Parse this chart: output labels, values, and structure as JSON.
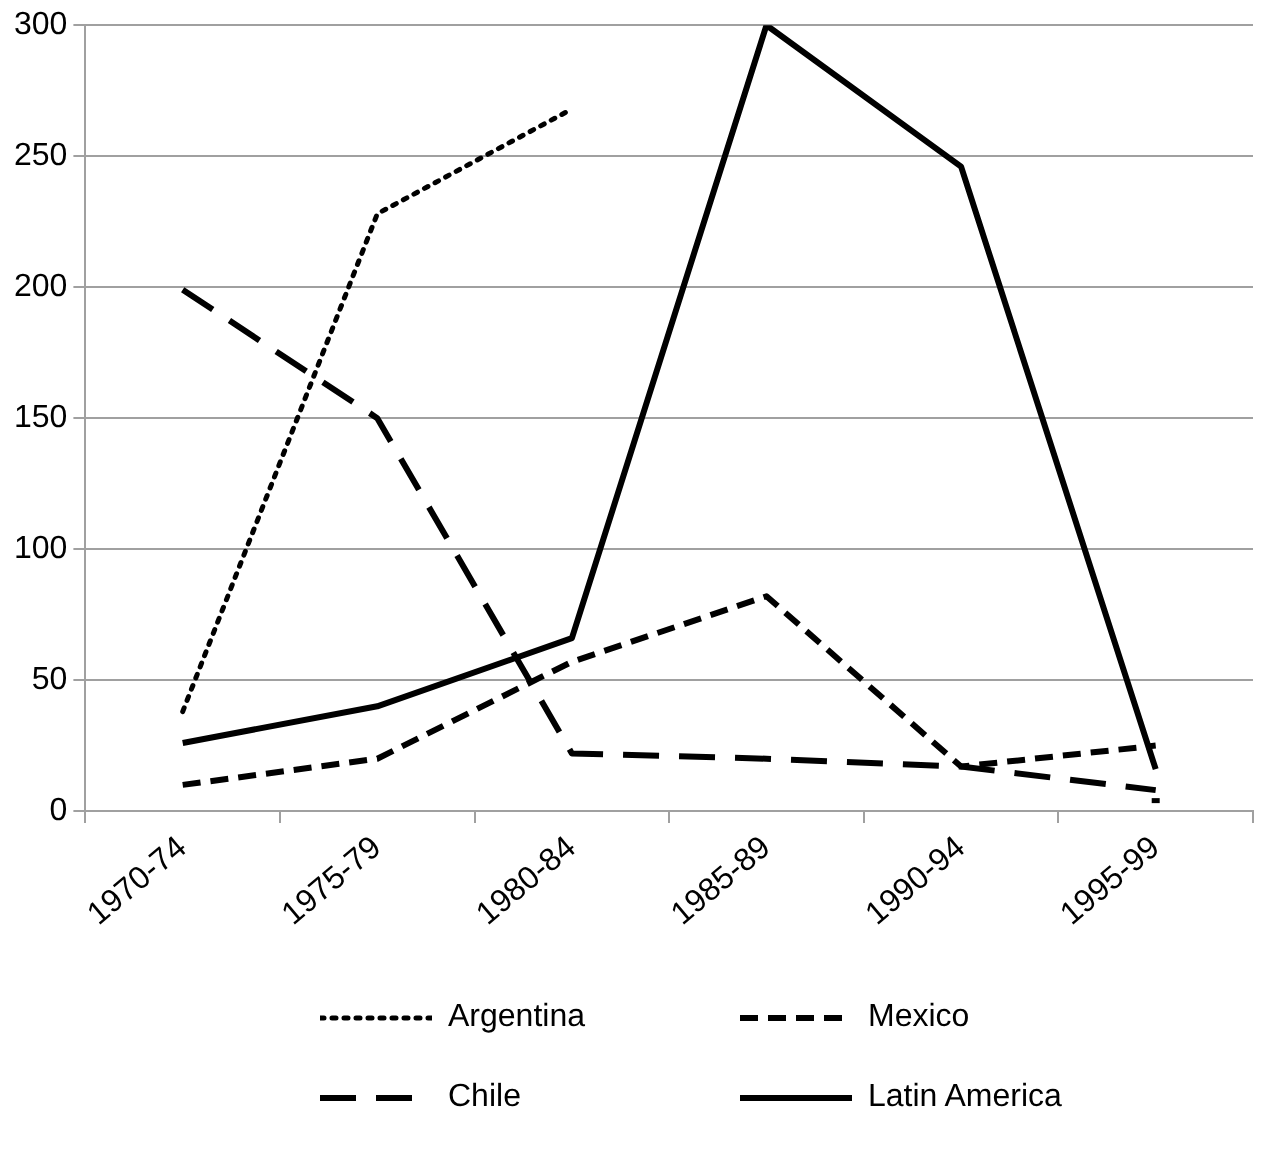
{
  "chart_data": {
    "type": "line",
    "categories": [
      "1970-74",
      "1975-79",
      "1980-84",
      "1985-89",
      "1990-94",
      "1995-99"
    ],
    "series": [
      {
        "name": "Argentina",
        "color": "#000000",
        "line_style": "dotted",
        "values": [
          38,
          228,
          268,
          null,
          null,
          4
        ]
      },
      {
        "name": "Mexico",
        "color": "#000000",
        "line_style": "dashed",
        "values": [
          10,
          20,
          57,
          82,
          17,
          25
        ]
      },
      {
        "name": "Chile",
        "color": "#000000",
        "line_style": "longdash",
        "values": [
          199,
          150,
          22,
          20,
          17,
          8
        ]
      },
      {
        "name": "Latin America",
        "color": "#000000",
        "line_style": "solid",
        "values": [
          26,
          40,
          66,
          300,
          246,
          16
        ]
      }
    ],
    "ylim": [
      0,
      300
    ],
    "yticks": [
      0,
      50,
      100,
      150,
      200,
      250,
      300
    ],
    "grid": "y",
    "legend": "bottom",
    "marker": "none"
  }
}
